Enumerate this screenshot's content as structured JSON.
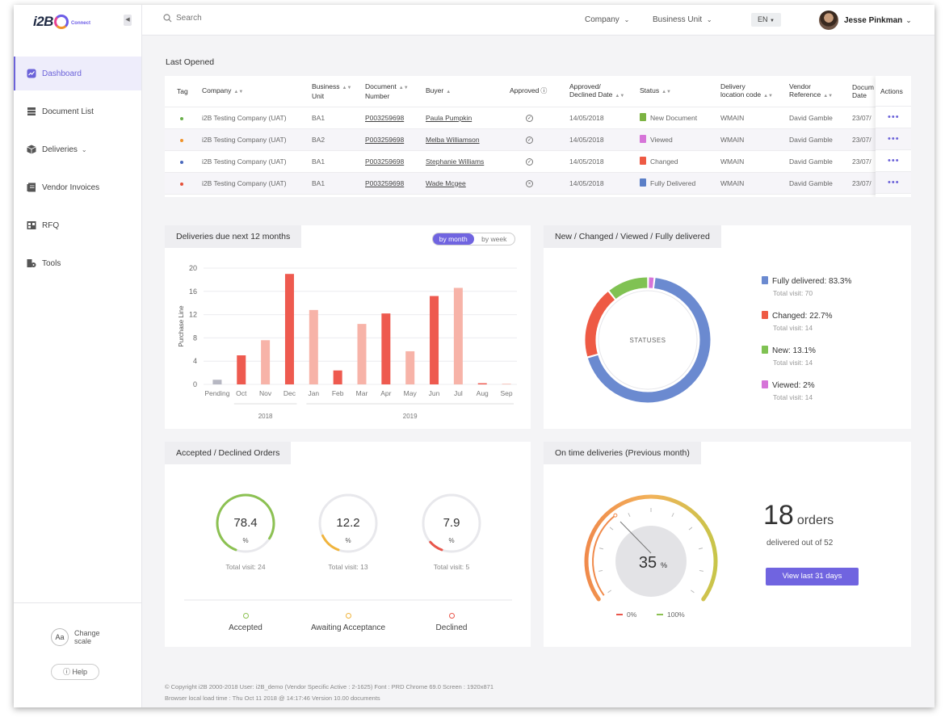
{
  "brand": {
    "name": "i2B",
    "sub": "Connect"
  },
  "sidebar": {
    "items": [
      {
        "label": "Dashboard",
        "icon": "dashboard-icon",
        "active": true
      },
      {
        "label": "Document List",
        "icon": "document-list-icon"
      },
      {
        "label": "Deliveries",
        "icon": "deliveries-icon",
        "has_children": true
      },
      {
        "label": "Vendor Invoices",
        "icon": "invoice-icon"
      },
      {
        "label": "RFQ",
        "icon": "rfq-icon"
      },
      {
        "label": "Tools",
        "icon": "tools-icon"
      }
    ],
    "change_scale": {
      "badge": "Aa",
      "line1": "Change",
      "line2": "scale"
    },
    "help_label": "Help"
  },
  "topbar": {
    "search_placeholder": "Search",
    "company_label": "Company",
    "business_unit_label": "Business Unit",
    "language": "EN",
    "user_name": "Jesse Pinkman"
  },
  "last_opened": {
    "title": "Last Opened",
    "columns": {
      "tag": "Tag",
      "company": "Company",
      "business_unit_1": "Business",
      "business_unit_2": "Unit",
      "document_number_1": "Document",
      "document_number_2": "Number",
      "buyer": "Buyer",
      "approved": "Approved",
      "approved_date_1": "Approved/",
      "approved_date_2": "Declined Date",
      "status": "Status",
      "delivery_code_1": "Delivery",
      "delivery_code_2": "location code",
      "vendor_ref_1": "Vendor",
      "vendor_ref_2": "Reference",
      "doc_date_1": "Docum",
      "doc_date_2": "Date",
      "actions": "Actions"
    },
    "rows": [
      {
        "tag_color": "#6ab04c",
        "company": "i2B Testing Company (UAT)",
        "bu": "BA1",
        "doc": "P003259698",
        "buyer": "Paula Pumpkin",
        "approved_symbol": "✓",
        "date": "14/05/2018",
        "status": "New Document",
        "status_color": "#7cb342",
        "delivery": "WMAIN",
        "vendor": "David Gamble",
        "doc_date": "23/07/"
      },
      {
        "tag_color": "#f0932b",
        "company": "i2B Testing Company (UAT)",
        "bu": "BA2",
        "doc": "P003259698",
        "buyer": "Melba Williamson",
        "approved_symbol": "✓",
        "date": "14/05/2018",
        "status": "Viewed",
        "status_color": "#d674d8",
        "delivery": "WMAIN",
        "vendor": "David Gamble",
        "doc_date": "23/07/"
      },
      {
        "tag_color": "#4a69bd",
        "company": "i2B Testing Company (UAT)",
        "bu": "BA1",
        "doc": "P003259698",
        "buyer": "Stephanie Williams",
        "approved_symbol": "✓",
        "date": "14/05/2018",
        "status": "Changed",
        "status_color": "#ee5a44",
        "delivery": "WMAIN",
        "vendor": "David Gamble",
        "doc_date": "23/07/"
      },
      {
        "tag_color": "#e55039",
        "company": "i2B Testing Company (UAT)",
        "bu": "BA1",
        "doc": "P003259698",
        "buyer": "Wade Mcgee",
        "approved_symbol": "×",
        "date": "14/05/2018",
        "status": "Fully Delivered",
        "status_color": "#5b7fc7",
        "delivery": "WMAIN",
        "vendor": "David Gamble",
        "doc_date": "23/07/"
      }
    ]
  },
  "deliveries_card": {
    "title": "Deliveries due next 12 months",
    "toggle": {
      "month": "by month",
      "week": "by week"
    },
    "chart_data": {
      "type": "bar",
      "ylabel": "Purchase Line",
      "ylim": [
        0,
        20
      ],
      "yticks": [
        0,
        4,
        8,
        12,
        16,
        20
      ],
      "categories": [
        "Pending",
        "Oct",
        "Nov",
        "Dec",
        "Jan",
        "Feb",
        "Mar",
        "Apr",
        "May",
        "Jun",
        "Jul",
        "Aug",
        "Sep"
      ],
      "values": [
        0.8,
        5,
        7.6,
        19,
        12.8,
        2.4,
        10.4,
        12.2,
        5.7,
        15.2,
        16.6,
        0.2,
        0.1
      ],
      "colors": [
        "#b6b7c2",
        "#ee5a4f",
        "#f7b3a8",
        "#ee5a4f",
        "#f7b3a8",
        "#ee5a4f",
        "#f7b3a8",
        "#ee5a4f",
        "#f7b3a8",
        "#ee5a4f",
        "#f7b3a8",
        "#ee5a4f",
        "#f7b3a8"
      ],
      "groups": [
        {
          "label": "2018",
          "from": 1,
          "to": 3
        },
        {
          "label": "2019",
          "from": 4,
          "to": 12
        }
      ]
    }
  },
  "statuses_card": {
    "title": "New / Changed / Viewed / Fully delivered",
    "center_label": "STATUSES",
    "chart_data": {
      "type": "pie",
      "slices": [
        {
          "label": "Fully delivered: 83.3%",
          "value": 83.3,
          "visits": "Total visit: 70",
          "color": "#6b8ad0"
        },
        {
          "label": "Changed: 22.7%",
          "value": 22.7,
          "visits": "Total visit: 14",
          "color": "#ee5a44"
        },
        {
          "label": "New: 13.1%",
          "value": 13.1,
          "visits": "Total visit: 14",
          "color": "#80c253"
        },
        {
          "label": "Viewed: 2%",
          "value": 2,
          "visits": "Total visit: 14",
          "color": "#d674d8"
        }
      ]
    }
  },
  "orders_card": {
    "title": "Accepted / Declined Orders",
    "kpis": [
      {
        "value": "78.4",
        "unit": "%",
        "fraction": 0.784,
        "visits": "Total visit: 24",
        "label": "Accepted",
        "color": "#8cc152"
      },
      {
        "value": "12.2",
        "unit": "%",
        "fraction": 0.122,
        "visits": "Total visit: 13",
        "label": "Awaiting Acceptance",
        "color": "#f0b43c"
      },
      {
        "value": "7.9",
        "unit": "%",
        "fraction": 0.079,
        "visits": "Total visit: 5",
        "label": "Declined",
        "color": "#e9564b"
      }
    ]
  },
  "ontime_card": {
    "title": "On time deliveries (Previous month)",
    "gauge_value": "35",
    "gauge_unit": "%",
    "gauge_fraction": 0.35,
    "legend_low": "0%",
    "legend_high": "100%",
    "orders_count": "18",
    "orders_unit": "orders",
    "orders_sub": "delivered out of 52",
    "button_label": "View last 31 days"
  },
  "footer": {
    "line1": "© Copyright i2B 2000-2018 User: i2B_demo  (Vendor Specific Active : 2-1625)  Font :  PRD Chrome 69.0  Screen : 1920x871",
    "line2": "Browser local load time : Thu Oct 11 2018 @ 14:17:46  Version 10.00 documents"
  }
}
